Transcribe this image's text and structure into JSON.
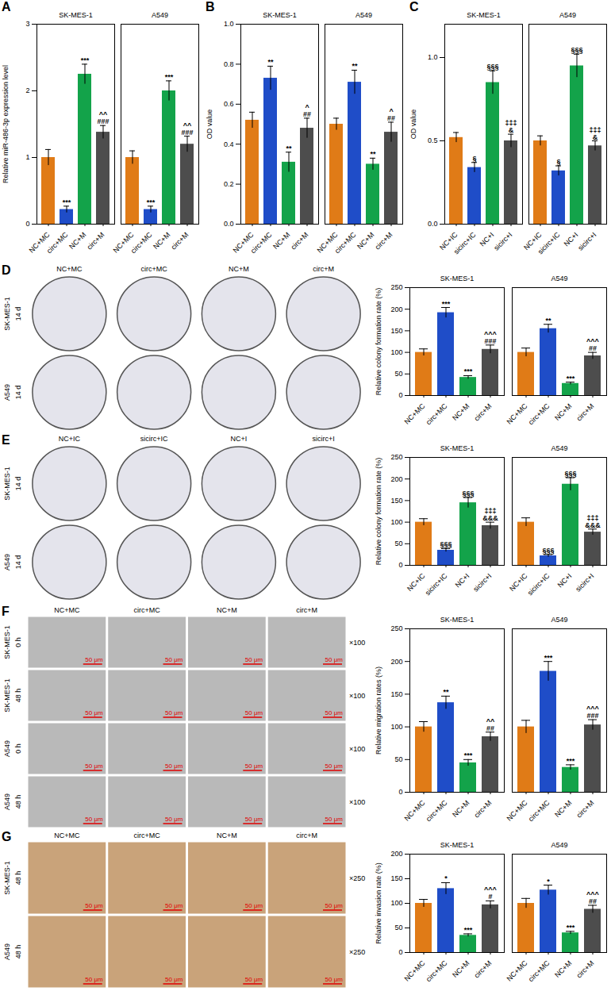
{
  "chart_data": [
    {
      "type": "bar",
      "title": "A",
      "ylabel": "Relative miR-486-3p expression level",
      "categories": [
        "NC+MC",
        "circ+MC",
        "NC+M",
        "circ+M"
      ],
      "colors": [
        "#E07B17",
        "#1F4DC8",
        "#13A34A",
        "#4D4D4D"
      ],
      "ylim": [
        0,
        3
      ],
      "yticks": [
        0,
        1,
        2,
        3
      ],
      "groups": [
        {
          "name": "SK-MES-1",
          "values": [
            1.0,
            0.22,
            2.25,
            1.38
          ],
          "errors": [
            0.12,
            0.05,
            0.15,
            0.1
          ],
          "annotations": [
            [],
            [
              "***"
            ],
            [
              "***"
            ],
            [
              "^^",
              "###"
            ]
          ]
        },
        {
          "name": "A549",
          "values": [
            1.0,
            0.22,
            2.0,
            1.2
          ],
          "errors": [
            0.1,
            0.05,
            0.15,
            0.12
          ],
          "annotations": [
            [],
            [
              "***"
            ],
            [
              "***"
            ],
            [
              "^^",
              "###"
            ]
          ]
        }
      ]
    },
    {
      "type": "bar",
      "title": "B",
      "ylabel": "OD value",
      "categories": [
        "NC+MC",
        "circ+MC",
        "NC+M",
        "circ+M"
      ],
      "colors": [
        "#E07B17",
        "#1F4DC8",
        "#13A34A",
        "#4D4D4D"
      ],
      "ylim": [
        0,
        1.0
      ],
      "yticks": [
        {
          "value": 0,
          "label": "0.0"
        },
        {
          "value": 0.2,
          "label": "0.2"
        },
        {
          "value": 0.4,
          "label": "0.4"
        },
        {
          "value": 0.6,
          "label": "0.6"
        },
        {
          "value": 0.8,
          "label": "0.8"
        },
        {
          "value": 1.0,
          "label": "1.0"
        }
      ],
      "groups": [
        {
          "name": "SK-MES-1",
          "values": [
            0.52,
            0.73,
            0.31,
            0.48
          ],
          "errors": [
            0.04,
            0.06,
            0.05,
            0.05
          ],
          "annotations": [
            [],
            [
              "**"
            ],
            [
              "**"
            ],
            [
              "^",
              "##"
            ]
          ]
        },
        {
          "name": "A549",
          "values": [
            0.5,
            0.71,
            0.3,
            0.46
          ],
          "errors": [
            0.03,
            0.06,
            0.03,
            0.05
          ],
          "annotations": [
            [],
            [
              "**"
            ],
            [
              "**"
            ],
            [
              "^",
              "##"
            ]
          ]
        }
      ]
    },
    {
      "type": "bar",
      "title": "C",
      "ylabel": "OD value",
      "categories": [
        "NC+IC",
        "sicirc+IC",
        "NC+I",
        "sicirc+I"
      ],
      "colors": [
        "#E07B17",
        "#1F4DC8",
        "#13A34A",
        "#4D4D4D"
      ],
      "ylim": [
        0,
        1.2
      ],
      "yticks": [
        {
          "value": 0,
          "label": "0.0"
        },
        {
          "value": 0.5,
          "label": "0.5"
        },
        {
          "value": 1.0,
          "label": "1.0"
        }
      ],
      "groups": [
        {
          "name": "SK-MES-1",
          "values": [
            0.52,
            0.34,
            0.85,
            0.5
          ],
          "errors": [
            0.03,
            0.03,
            0.07,
            0.04
          ],
          "annotations": [
            [],
            [
              "§"
            ],
            [
              "§§§"
            ],
            [
              "‡‡‡",
              "&"
            ]
          ]
        },
        {
          "name": "A549",
          "values": [
            0.5,
            0.32,
            0.95,
            0.47
          ],
          "errors": [
            0.03,
            0.03,
            0.07,
            0.03
          ],
          "annotations": [
            [],
            [
              "§"
            ],
            [
              "§§§"
            ],
            [
              "‡‡‡",
              "&"
            ]
          ]
        }
      ]
    },
    {
      "type": "bar",
      "title": "D",
      "ylabel": "Relative colony formation rate (%)",
      "categories": [
        "NC+MC",
        "circ+MC",
        "NC+M",
        "circ+M"
      ],
      "colors": [
        "#E07B17",
        "#1F4DC8",
        "#13A34A",
        "#4D4D4D"
      ],
      "ylim": [
        0,
        250
      ],
      "yticks": [
        0,
        50,
        100,
        150,
        200,
        250
      ],
      "groups": [
        {
          "name": "SK-MES-1",
          "values": [
            100,
            192,
            42,
            107
          ],
          "errors": [
            8,
            12,
            4,
            10
          ],
          "annotations": [
            [],
            [
              "***"
            ],
            [
              "***"
            ],
            [
              "^^^",
              "###"
            ]
          ]
        },
        {
          "name": "A549",
          "values": [
            100,
            155,
            28,
            92
          ],
          "errors": [
            10,
            10,
            3,
            8
          ],
          "annotations": [
            [],
            [
              "**"
            ],
            [
              "***"
            ],
            [
              "^^^",
              "##"
            ]
          ]
        }
      ]
    },
    {
      "type": "bar",
      "title": "E",
      "ylabel": "Relative colony formation rate (%)",
      "categories": [
        "NC+IC",
        "sicirc+IC",
        "NC+I",
        "sicirc+I"
      ],
      "colors": [
        "#E07B17",
        "#1F4DC8",
        "#13A34A",
        "#4D4D4D"
      ],
      "ylim": [
        0,
        250
      ],
      "yticks": [
        0,
        50,
        100,
        150,
        200,
        250
      ],
      "groups": [
        {
          "name": "SK-MES-1",
          "values": [
            100,
            35,
            145,
            92
          ],
          "errors": [
            8,
            4,
            12,
            8
          ],
          "annotations": [
            [],
            [
              "§§§"
            ],
            [
              "§§§"
            ],
            [
              "‡‡‡",
              "&&&"
            ]
          ]
        },
        {
          "name": "A549",
          "values": [
            100,
            22,
            188,
            77
          ],
          "errors": [
            10,
            3,
            15,
            7
          ],
          "annotations": [
            [],
            [
              "§§§"
            ],
            [
              "§§§"
            ],
            [
              "‡‡‡",
              "&&&"
            ]
          ]
        }
      ]
    },
    {
      "type": "bar",
      "title": "F",
      "ylabel": "Relative migration rates (%)",
      "categories": [
        "NC+MC",
        "circ+MC",
        "NC+M",
        "circ+M"
      ],
      "colors": [
        "#E07B17",
        "#1F4DC8",
        "#13A34A",
        "#4D4D4D"
      ],
      "ylim": [
        0,
        250
      ],
      "yticks": [
        0,
        50,
        100,
        150,
        200,
        250
      ],
      "groups": [
        {
          "name": "SK-MES-1",
          "values": [
            100,
            137,
            45,
            85
          ],
          "errors": [
            8,
            10,
            5,
            7
          ],
          "annotations": [
            [],
            [
              "**"
            ],
            [
              "***"
            ],
            [
              "^^",
              "##"
            ]
          ]
        },
        {
          "name": "A549",
          "values": [
            100,
            185,
            38,
            103
          ],
          "errors": [
            10,
            15,
            4,
            8
          ],
          "annotations": [
            [],
            [
              "***"
            ],
            [
              "***"
            ],
            [
              "^^^",
              "###"
            ]
          ]
        }
      ]
    },
    {
      "type": "bar",
      "title": "G",
      "ylabel": "Relative invasion rate (%)",
      "categories": [
        "NC+MC",
        "circ+MC",
        "NC+M",
        "circ+M"
      ],
      "colors": [
        "#E07B17",
        "#1F4DC8",
        "#13A34A",
        "#4D4D4D"
      ],
      "ylim": [
        0,
        200
      ],
      "yticks": [
        0,
        50,
        100,
        150,
        200
      ],
      "groups": [
        {
          "name": "SK-MES-1",
          "values": [
            100,
            130,
            35,
            97
          ],
          "errors": [
            8,
            12,
            3,
            8
          ],
          "annotations": [
            [],
            [
              "*"
            ],
            [
              "***"
            ],
            [
              "^^^",
              "#"
            ]
          ]
        },
        {
          "name": "A549",
          "values": [
            100,
            127,
            40,
            88
          ],
          "errors": [
            10,
            10,
            3,
            8
          ],
          "annotations": [
            [],
            [
              "*"
            ],
            [
              "***"
            ],
            [
              "^^^",
              "##"
            ]
          ]
        }
      ]
    }
  ],
  "image_panels": [
    {
      "columns": [
        "NC+MC",
        "circ+MC",
        "NC+M",
        "circ+M"
      ],
      "shape": "circle",
      "rows": [
        {
          "cell_line": "SK-MES-1",
          "time": "14 d"
        },
        {
          "cell_line": "A549",
          "time": "14 d"
        }
      ]
    },
    {
      "columns": [
        "NC+IC",
        "sicirc+IC",
        "NC+I",
        "sicirc+I"
      ],
      "shape": "circle",
      "rows": [
        {
          "cell_line": "SK-MES-1",
          "time": "14 d"
        },
        {
          "cell_line": "A549",
          "time": "14 d"
        }
      ]
    },
    {
      "columns": [
        "NC+MC",
        "circ+MC",
        "NC+M",
        "circ+M"
      ],
      "shape": "rectangle",
      "color": "#b9b9b9",
      "scale_bar": "50 μm",
      "magnification": "×100",
      "rows": [
        {
          "cell_line": "SK-MES-1",
          "time": "0 h"
        },
        {
          "cell_line": "SK-MES-1",
          "time": "48 h"
        },
        {
          "cell_line": "A549",
          "time": "0 h"
        },
        {
          "cell_line": "A549",
          "time": "48 h"
        }
      ]
    },
    {
      "columns": [
        "NC+MC",
        "circ+MC",
        "NC+M",
        "circ+M"
      ],
      "shape": "rectangle",
      "color": "#c9a37a",
      "scale_bar": "50 μm",
      "magnification": "×250",
      "rows": [
        {
          "cell_line": "SK-MES-1",
          "time": "48 h"
        },
        {
          "cell_line": "A549",
          "time": "48 h"
        }
      ]
    }
  ]
}
